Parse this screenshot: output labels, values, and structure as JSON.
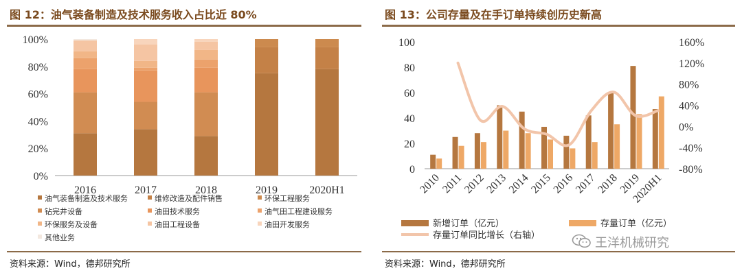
{
  "left": {
    "title": "图 12：油气装备制造及技术服务收入占比近 80%",
    "source": "资料来源：Wind，德邦研究所",
    "chart_data": {
      "type": "stacked-bar",
      "title": "油气装备制造及技术服务收入占比近 80%",
      "categories": [
        "2016",
        "2017",
        "2018",
        "2019",
        "2020H1"
      ],
      "y_ticks": [
        "0%",
        "20%",
        "40%",
        "60%",
        "80%",
        "100%"
      ],
      "ylim": [
        0,
        100
      ],
      "series": [
        {
          "name": "油气装备制造及技术服务",
          "color": "#b5773f",
          "values": [
            31,
            34,
            29,
            75,
            78
          ]
        },
        {
          "name": "维修改造及配件销售",
          "color": "#c48147",
          "values": [
            0,
            0,
            0,
            19,
            16
          ]
        },
        {
          "name": "环保工程服务",
          "color": "#cc8a4e",
          "values": [
            0,
            0,
            0,
            6,
            6
          ]
        },
        {
          "name": "钻完井设备",
          "color": "#d18c52",
          "values": [
            30,
            20,
            32,
            0,
            0
          ]
        },
        {
          "name": "油田技术服务",
          "color": "#e8955c",
          "values": [
            17,
            23,
            18,
            0,
            0
          ]
        },
        {
          "name": "油气田工程建设服务",
          "color": "#eca26c",
          "values": [
            8,
            2,
            6,
            0,
            0
          ]
        },
        {
          "name": "环保服务及设备",
          "color": "#f1b687",
          "values": [
            5,
            5,
            7,
            0,
            0
          ]
        },
        {
          "name": "油田工程设备",
          "color": "#f5c5a3",
          "values": [
            8,
            12,
            6,
            0,
            0
          ]
        },
        {
          "name": "油田开发服务",
          "color": "#f8d5bc",
          "values": [
            0,
            4,
            2,
            0,
            0
          ]
        },
        {
          "name": "其他业务",
          "color": "#f3e8df",
          "values": [
            1,
            0,
            0,
            0,
            0
          ]
        }
      ],
      "legend_position": "bottom"
    }
  },
  "right": {
    "title": "图 13：公司存量及在手订单持续创历史新高",
    "source": "资料来源：Wind，德邦研究所",
    "chart_data": {
      "type": "bar-line",
      "title": "公司存量及在手订单持续创历史新高",
      "categories": [
        "2010",
        "2011",
        "2012",
        "2013",
        "2014",
        "2015",
        "2016",
        "2017",
        "2018",
        "2019",
        "2020H1"
      ],
      "y_left_ticks": [
        "0",
        "20",
        "40",
        "60",
        "80",
        "100"
      ],
      "ylim_left": [
        0,
        100
      ],
      "y_right_ticks": [
        "-80%",
        "-40%",
        "0%",
        "40%",
        "80%",
        "120%",
        "160%"
      ],
      "ylim_right": [
        -80,
        160
      ],
      "bar_series": [
        {
          "name": "新增订单（亿元）",
          "color": "#b5773f",
          "values": [
            11,
            25,
            28,
            50,
            45,
            33,
            26,
            42,
            60,
            81,
            47
          ]
        },
        {
          "name": "存量订单（亿元）",
          "color": "#eea866",
          "values": [
            8,
            18,
            21,
            30,
            28,
            23,
            16,
            21,
            35,
            43,
            57
          ]
        }
      ],
      "line_series": {
        "name": "存量订单同比增长（右轴）",
        "color": "#f2c5aa",
        "axis": "right",
        "values": [
          null,
          120,
          12,
          38,
          -5,
          -15,
          -35,
          30,
          65,
          20,
          30
        ]
      },
      "legend_position": "bottom"
    }
  },
  "watermark": {
    "text": "王洋机械研究",
    "icon": "wechat-icon"
  }
}
